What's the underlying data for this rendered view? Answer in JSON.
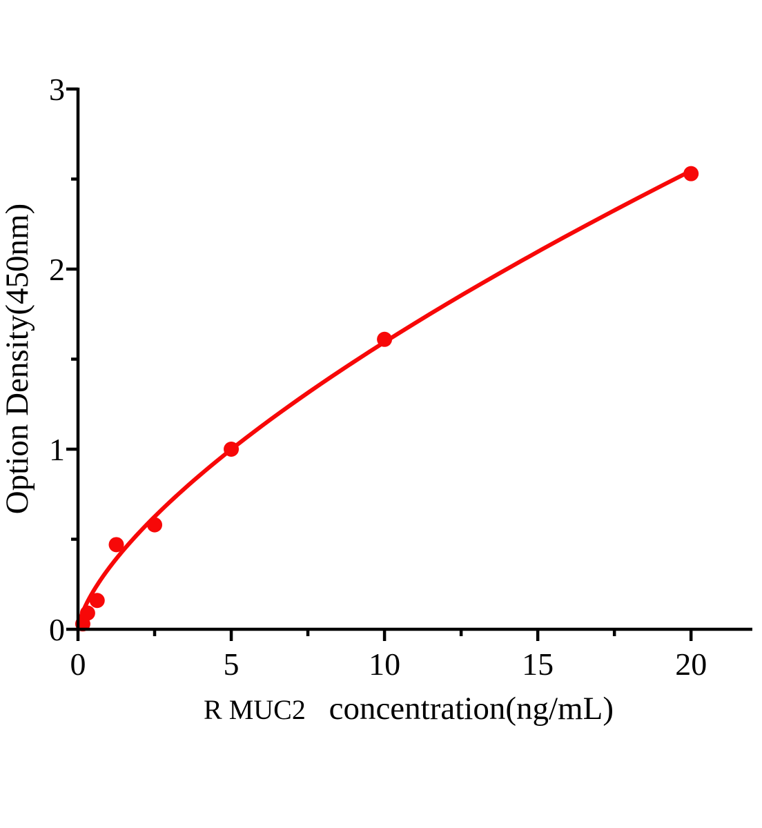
{
  "page": {
    "background": "#ffffff"
  },
  "chart_data": {
    "type": "scatter",
    "title": "",
    "ylabel": "Option Density(450nm)",
    "xlabel_prefix": "R MUC2",
    "xlabel_main": "concentration(ng/mL)",
    "points": [
      {
        "x": 0.156,
        "y": 0.03
      },
      {
        "x": 0.312,
        "y": 0.09
      },
      {
        "x": 0.625,
        "y": 0.16
      },
      {
        "x": 1.25,
        "y": 0.47
      },
      {
        "x": 2.5,
        "y": 0.58
      },
      {
        "x": 5,
        "y": 1.0
      },
      {
        "x": 10,
        "y": 1.61
      },
      {
        "x": 20,
        "y": 2.53
      }
    ],
    "xlim": [
      0,
      22
    ],
    "ylim": [
      0,
      3
    ],
    "x_major_ticks": [
      0,
      5,
      10,
      15,
      20
    ],
    "x_minor_ticks": [
      2.5,
      7.5,
      12.5,
      17.5
    ],
    "y_major_ticks": [
      0,
      1,
      2,
      3
    ],
    "y_minor_ticks": [
      0.5,
      1.5,
      2.5
    ],
    "grid": false,
    "legend": "none",
    "marker_color": "#f70808",
    "curve_color": "#f70808",
    "axis_color": "#000000",
    "fit_curve": {
      "type": "power",
      "a": 0.337,
      "b": 0.675,
      "x_start": 0.012,
      "x_end": 20
    }
  }
}
